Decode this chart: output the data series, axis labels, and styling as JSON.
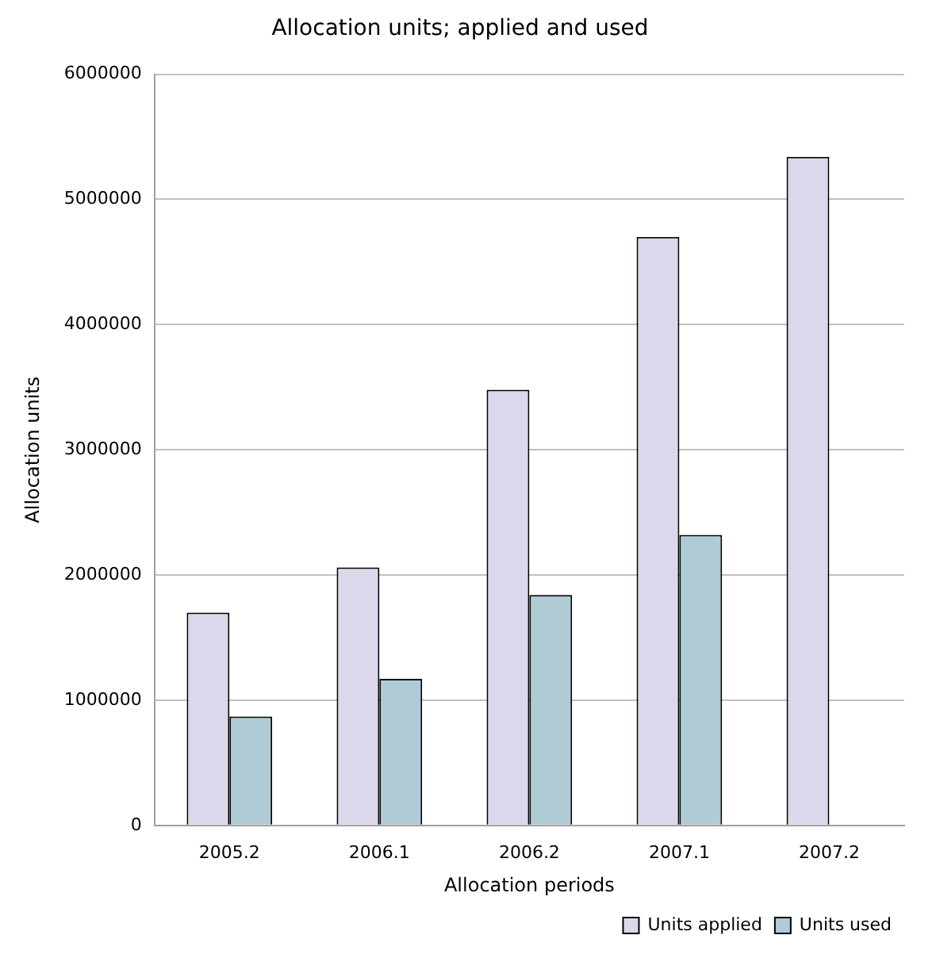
{
  "chart_data": {
    "type": "bar",
    "title": "Allocation units; applied and used",
    "xlabel": "Allocation periods",
    "ylabel": "Allocation units",
    "categories": [
      "2005.2",
      "2006.1",
      "2006.2",
      "2007.1",
      "2007.2"
    ],
    "series": [
      {
        "name": "Units applied",
        "color": "#dad8ea",
        "values": [
          1700000,
          2060000,
          3480000,
          4700000,
          5340000
        ]
      },
      {
        "name": "Units used",
        "color": "#aecbd6",
        "values": [
          870000,
          1170000,
          1840000,
          2320000,
          null
        ]
      }
    ],
    "ylim": [
      0,
      6000000
    ],
    "yticks": [
      0,
      1000000,
      2000000,
      3000000,
      4000000,
      5000000,
      6000000
    ],
    "grid": "y",
    "legend": "bottom right"
  }
}
